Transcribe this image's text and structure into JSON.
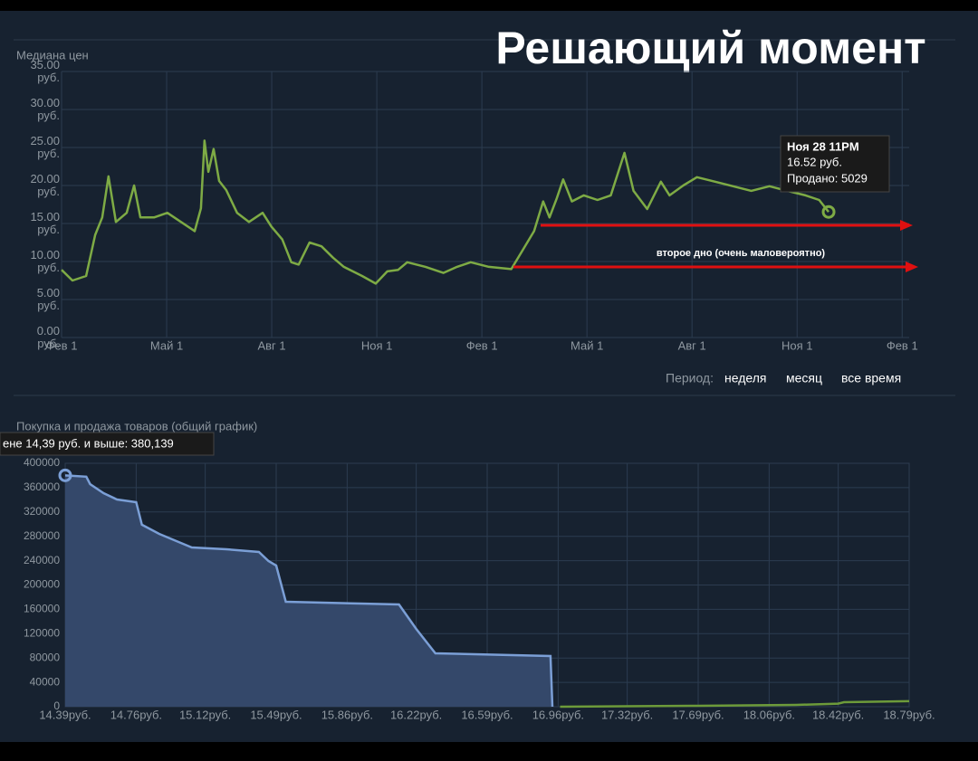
{
  "header": {
    "title": "Решающий момент"
  },
  "period": {
    "label": "Период:",
    "options": [
      "неделя",
      "месяц",
      "все время"
    ]
  },
  "chart_data": [
    {
      "type": "line",
      "title": "Медиана цен",
      "color": "#7eab45",
      "x": [
        0,
        0.31,
        0.7,
        0.96,
        1.16,
        1.34,
        1.55,
        1.86,
        2.07,
        2.25,
        2.64,
        3.02,
        3.41,
        3.8,
        3.98,
        4.08,
        4.19,
        4.34,
        4.5,
        4.7,
        5.01,
        5.35,
        5.74,
        5.99,
        6.3,
        6.56,
        6.77,
        7.08,
        7.42,
        7.75,
        8.06,
        8.58,
        8.97,
        9.3,
        9.61,
        9.87,
        10.39,
        10.9,
        11.29,
        11.68,
        12.2,
        12.84,
        13.1,
        13.49,
        13.75,
        13.93,
        14.13,
        14.32,
        14.57,
        14.91,
        15.3,
        15.68,
        16.07,
        16.33,
        16.72,
        17.11,
        17.36,
        17.75,
        18.14,
        18.66,
        19.17,
        19.69,
        20.21,
        20.72,
        21.24,
        21.63,
        21.9
      ],
      "values": [
        8.9,
        7.5,
        8.1,
        13.5,
        15.8,
        21.2,
        15.2,
        16.4,
        20.0,
        15.8,
        15.8,
        16.4,
        15.2,
        14.0,
        17.0,
        25.9,
        21.8,
        24.8,
        20.6,
        19.4,
        16.4,
        15.2,
        16.4,
        14.6,
        12.9,
        9.9,
        9.6,
        12.5,
        12.0,
        10.5,
        9.3,
        8.1,
        7.1,
        8.7,
        8.9,
        9.9,
        9.3,
        8.5,
        9.3,
        9.9,
        9.3,
        9.0,
        11.0,
        14.0,
        17.9,
        15.8,
        18.2,
        20.8,
        17.9,
        18.7,
        18.1,
        18.7,
        24.3,
        19.3,
        16.9,
        20.5,
        18.7,
        20.0,
        21.1,
        20.5,
        19.9,
        19.3,
        19.9,
        19.3,
        18.7,
        18.1,
        16.52
      ],
      "xlim": [
        0,
        24.2
      ],
      "xticks": [
        {
          "value": 0,
          "label": "Фев 1"
        },
        {
          "value": 3,
          "label": "Май 1"
        },
        {
          "value": 6,
          "label": "Авг 1"
        },
        {
          "value": 9,
          "label": "Ноя 1"
        },
        {
          "value": 12,
          "label": "Фев 1"
        },
        {
          "value": 15,
          "label": "Май 1"
        },
        {
          "value": 18,
          "label": "Авг 1"
        },
        {
          "value": 21,
          "label": "Ноя 1"
        },
        {
          "value": 24,
          "label": "Фев 1"
        }
      ],
      "ylim": [
        0,
        35
      ],
      "yticks": [
        {
          "value": 0,
          "label": "0.00 руб."
        },
        {
          "value": 5,
          "label": "5.00 руб."
        },
        {
          "value": 10,
          "label": "10.00 руб."
        },
        {
          "value": 15,
          "label": "15.00 руб."
        },
        {
          "value": 20,
          "label": "20.00 руб."
        },
        {
          "value": 25,
          "label": "25.00 руб."
        },
        {
          "value": 30,
          "label": "30.00 руб."
        },
        {
          "value": 35,
          "label": "35.00 руб."
        }
      ],
      "grid": true,
      "tooltip": [
        "Ноя 28 11PM",
        "16.52 руб.",
        "Продано: 5029"
      ],
      "annotation": "второе дно (очень маловероятно)"
    },
    {
      "type": "area",
      "title": "Покупка и продажа товаров (общий график)",
      "series": [
        {
          "color": "#7b9fd6",
          "fill_color": "#34486a",
          "x": [
            14.39,
            14.5,
            14.52,
            14.59,
            14.66,
            14.76,
            14.79,
            14.88,
            14.97,
            15.05,
            15.23,
            15.4,
            15.45,
            15.49,
            15.54,
            16.13,
            16.22,
            16.32,
            16.92,
            16.93
          ],
          "values": [
            380139,
            378000,
            365800,
            351000,
            340500,
            336000,
            299000,
            284000,
            272100,
            261700,
            258700,
            254300,
            239400,
            232000,
            172500,
            168000,
            127900,
            87700,
            83300,
            0
          ]
        },
        {
          "color": "#6d9b3a",
          "x": [
            16.97,
            17.69,
            18.2,
            18.42,
            18.45,
            18.79
          ],
          "values": [
            0,
            1500,
            3000,
            5000,
            7500,
            9000
          ]
        }
      ],
      "xlim": [
        14.39,
        18.79
      ],
      "xticks": [
        {
          "value": 14.39,
          "label": "14.39руб."
        },
        {
          "value": 14.76,
          "label": "14.76руб."
        },
        {
          "value": 15.12,
          "label": "15.12руб."
        },
        {
          "value": 15.49,
          "label": "15.49руб."
        },
        {
          "value": 15.86,
          "label": "15.86руб."
        },
        {
          "value": 16.22,
          "label": "16.22руб."
        },
        {
          "value": 16.59,
          "label": "16.59руб."
        },
        {
          "value": 16.96,
          "label": "16.96руб."
        },
        {
          "value": 17.32,
          "label": "17.32руб."
        },
        {
          "value": 17.69,
          "label": "17.69руб."
        },
        {
          "value": 18.06,
          "label": "18.06руб."
        },
        {
          "value": 18.42,
          "label": "18.42руб."
        },
        {
          "value": 18.79,
          "label": "18.79руб."
        }
      ],
      "ylim": [
        0,
        400000
      ],
      "yticks": [
        0,
        40000,
        80000,
        120000,
        160000,
        200000,
        240000,
        280000,
        320000,
        360000,
        400000
      ],
      "grid": true,
      "tooltip": "ене 14,39 руб. и выше: 380,139"
    }
  ]
}
